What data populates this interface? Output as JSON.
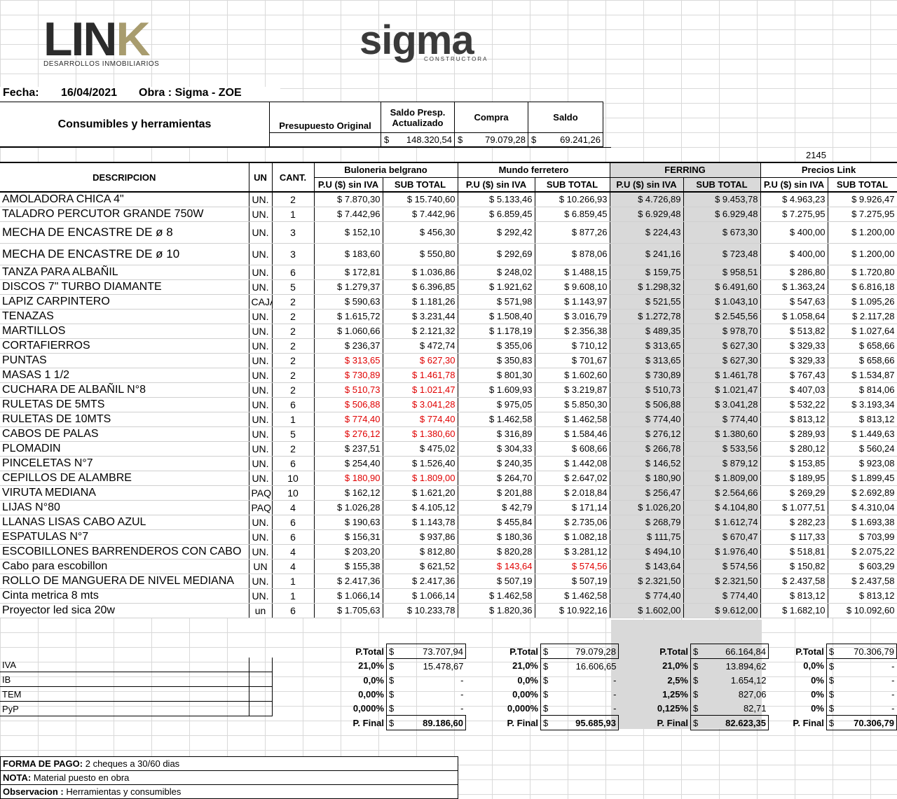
{
  "logos": {
    "link_main": "LIN",
    "link_k": "K",
    "link_sub": "DESARROLLOS INMOBILIARIOS",
    "sigma_main": "sigma",
    "sigma_sub": "CONSTRUCTORA"
  },
  "header": {
    "fecha_label": "Fecha:",
    "fecha_value": "16/04/2021",
    "obra": "Obra : Sigma - ZOE"
  },
  "summary": {
    "title": "Consumibles y herramientas",
    "col_original": "Presupuesto Original",
    "col_saldo_presp": "Saldo Presp. Actualizado",
    "col_compra": "Compra",
    "col_saldo": "Saldo",
    "currency": "$",
    "saldo_presp_value": "148.320,54",
    "compra_value": "79.079,28",
    "saldo_value": "69.241,26",
    "extra_number": "2145"
  },
  "columns": {
    "descripcion": "DESCRIPCION",
    "un": "UN",
    "cant": "CANT.",
    "vendors": [
      "Buloneria belgrano",
      "Mundo ferretero",
      "FERRING",
      "Precios Link"
    ],
    "pu": "P.U ($) sin IVA",
    "subtotal": "SUB TOTAL"
  },
  "rows": [
    {
      "desc": "AMOLADORA CHICA 4\"",
      "un": "UN.",
      "cant": "2",
      "v": [
        "$ 7.870,30",
        "$ 15.740,60",
        "$ 5.133,46",
        "$ 10.266,93",
        "$ 4.726,89",
        "$ 9.453,78",
        "$ 4.963,23",
        "$ 9.926,47"
      ],
      "red": []
    },
    {
      "desc": "TALADRO PERCUTOR GRANDE 750W",
      "un": "UN.",
      "cant": "1",
      "v": [
        "$ 7.442,96",
        "$ 7.442,96",
        "$ 6.859,45",
        "$ 6.859,45",
        "$ 6.929,48",
        "$ 6.929,48",
        "$ 7.275,95",
        "$ 7.275,95"
      ],
      "red": []
    },
    {
      "desc": "MECHA DE ENCASTRE DE ø 8",
      "un": "UN.",
      "cant": "3",
      "v": [
        "$ 152,10",
        "$ 456,30",
        "$ 292,42",
        "$ 877,26",
        "$ 224,43",
        "$ 673,30",
        "$ 400,00",
        "$ 1.200,00"
      ],
      "red": []
    },
    {
      "desc": "MECHA DE ENCASTRE DE ø 10",
      "un": "UN.",
      "cant": "3",
      "v": [
        "$ 183,60",
        "$ 550,80",
        "$ 292,69",
        "$ 878,06",
        "$ 241,16",
        "$ 723,48",
        "$ 400,00",
        "$ 1.200,00"
      ],
      "red": []
    },
    {
      "desc": "TANZA PARA ALBAÑIL",
      "un": "UN.",
      "cant": "6",
      "v": [
        "$ 172,81",
        "$ 1.036,86",
        "$ 248,02",
        "$ 1.488,15",
        "$ 159,75",
        "$ 958,51",
        "$ 286,80",
        "$ 1.720,80"
      ],
      "red": []
    },
    {
      "desc": "DISCOS 7\" TURBO DIAMANTE",
      "un": "UN.",
      "cant": "5",
      "v": [
        "$ 1.279,37",
        "$ 6.396,85",
        "$ 1.921,62",
        "$ 9.608,10",
        "$ 1.298,32",
        "$ 6.491,60",
        "$ 1.363,24",
        "$ 6.816,18"
      ],
      "red": []
    },
    {
      "desc": "LAPIZ CARPINTERO",
      "un": "CAJAS",
      "cant": "2",
      "v": [
        "$ 590,63",
        "$ 1.181,26",
        "$ 571,98",
        "$ 1.143,97",
        "$ 521,55",
        "$ 1.043,10",
        "$ 547,63",
        "$ 1.095,26"
      ],
      "red": []
    },
    {
      "desc": "TENAZAS",
      "un": "UN.",
      "cant": "2",
      "v": [
        "$ 1.615,72",
        "$ 3.231,44",
        "$ 1.508,40",
        "$ 3.016,79",
        "$ 1.272,78",
        "$ 2.545,56",
        "$ 1.058,64",
        "$ 2.117,28"
      ],
      "red": []
    },
    {
      "desc": "MARTILLOS",
      "un": "UN.",
      "cant": "2",
      "v": [
        "$ 1.060,66",
        "$ 2.121,32",
        "$ 1.178,19",
        "$ 2.356,38",
        "$ 489,35",
        "$ 978,70",
        "$ 513,82",
        "$ 1.027,64"
      ],
      "red": []
    },
    {
      "desc": "CORTAFIERROS",
      "un": "UN.",
      "cant": "2",
      "v": [
        "$ 236,37",
        "$ 472,74",
        "$ 355,06",
        "$ 710,12",
        "$ 313,65",
        "$ 627,30",
        "$ 329,33",
        "$ 658,66"
      ],
      "red": []
    },
    {
      "desc": "PUNTAS",
      "un": "UN.",
      "cant": "2",
      "v": [
        "$ 313,65",
        "$ 627,30",
        "$ 350,83",
        "$ 701,67",
        "$ 313,65",
        "$ 627,30",
        "$ 329,33",
        "$ 658,66"
      ],
      "red": [
        0,
        1
      ]
    },
    {
      "desc": "MASAS 1 1/2",
      "un": "UN.",
      "cant": "2",
      "v": [
        "$ 730,89",
        "$ 1.461,78",
        "$ 801,30",
        "$ 1.602,60",
        "$ 730,89",
        "$ 1.461,78",
        "$ 767,43",
        "$ 1.534,87"
      ],
      "red": [
        0,
        1
      ]
    },
    {
      "desc": "CUCHARA DE ALBAÑIL N°8",
      "un": "UN.",
      "cant": "2",
      "v": [
        "$ 510,73",
        "$ 1.021,47",
        "$ 1.609,93",
        "$ 3.219,87",
        "$ 510,73",
        "$ 1.021,47",
        "$ 407,03",
        "$ 814,06"
      ],
      "red": [
        0,
        1
      ]
    },
    {
      "desc": "RULETAS DE 5MTS",
      "un": "UN.",
      "cant": "6",
      "v": [
        "$ 506,88",
        "$ 3.041,28",
        "$ 975,05",
        "$ 5.850,30",
        "$ 506,88",
        "$ 3.041,28",
        "$ 532,22",
        "$ 3.193,34"
      ],
      "red": [
        0,
        1
      ]
    },
    {
      "desc": "RULETAS DE 10MTS",
      "un": "UN.",
      "cant": "1",
      "v": [
        "$ 774,40",
        "$ 774,40",
        "$ 1.462,58",
        "$ 1.462,58",
        "$ 774,40",
        "$ 774,40",
        "$ 813,12",
        "$ 813,12"
      ],
      "red": [
        0,
        1
      ]
    },
    {
      "desc": "CABOS DE PALAS",
      "un": "UN.",
      "cant": "5",
      "v": [
        "$ 276,12",
        "$ 1.380,60",
        "$ 316,89",
        "$ 1.584,46",
        "$ 276,12",
        "$ 1.380,60",
        "$ 289,93",
        "$ 1.449,63"
      ],
      "red": [
        0,
        1
      ]
    },
    {
      "desc": "PLOMADIN",
      "un": "UN.",
      "cant": "2",
      "v": [
        "$ 237,51",
        "$ 475,02",
        "$ 304,33",
        "$ 608,66",
        "$ 266,78",
        "$ 533,56",
        "$ 280,12",
        "$ 560,24"
      ],
      "red": []
    },
    {
      "desc": "PINCELETAS N°7",
      "un": "UN.",
      "cant": "6",
      "v": [
        "$ 254,40",
        "$ 1.526,40",
        "$ 240,35",
        "$ 1.442,08",
        "$ 146,52",
        "$ 879,12",
        "$ 153,85",
        "$ 923,08"
      ],
      "red": []
    },
    {
      "desc": "CEPILLOS DE ALAMBRE",
      "un": "UN.",
      "cant": "10",
      "v": [
        "$ 180,90",
        "$ 1.809,00",
        "$ 264,70",
        "$ 2.647,02",
        "$ 180,90",
        "$ 1.809,00",
        "$ 189,95",
        "$ 1.899,45"
      ],
      "red": [
        0,
        1
      ]
    },
    {
      "desc": "VIRUTA MEDIANA",
      "un": "PAQUET",
      "cant": "10",
      "v": [
        "$ 162,12",
        "$ 1.621,20",
        "$ 201,88",
        "$ 2.018,84",
        "$ 256,47",
        "$ 2.564,66",
        "$ 269,29",
        "$ 2.692,89"
      ],
      "red": []
    },
    {
      "desc": "LIJAS N°80",
      "un": "PAQUET",
      "cant": "4",
      "v": [
        "$ 1.026,28",
        "$ 4.105,12",
        "$ 42,79",
        "$ 171,14",
        "$ 1.026,20",
        "$ 4.104,80",
        "$ 1.077,51",
        "$ 4.310,04"
      ],
      "red": []
    },
    {
      "desc": "LLANAS LISAS CABO AZUL",
      "un": "UN.",
      "cant": "6",
      "v": [
        "$ 190,63",
        "$ 1.143,78",
        "$ 455,84",
        "$ 2.735,06",
        "$ 268,79",
        "$ 1.612,74",
        "$ 282,23",
        "$ 1.693,38"
      ],
      "red": []
    },
    {
      "desc": "ESPATULAS N°7",
      "un": "UN.",
      "cant": "6",
      "v": [
        "$ 156,31",
        "$ 937,86",
        "$ 180,36",
        "$ 1.082,18",
        "$ 111,75",
        "$ 670,47",
        "$ 117,33",
        "$ 703,99"
      ],
      "red": []
    },
    {
      "desc": "ESCOBILLONES BARRENDEROS CON CABO",
      "un": "UN.",
      "cant": "4",
      "v": [
        "$ 203,20",
        "$ 812,80",
        "$ 820,28",
        "$ 3.281,12",
        "$ 494,10",
        "$ 1.976,40",
        "$ 518,81",
        "$ 2.075,22"
      ],
      "red": []
    },
    {
      "desc": "Cabo para escobillon",
      "un": "UN",
      "cant": "4",
      "v": [
        "$ 155,38",
        "$ 621,52",
        "$ 143,64",
        "$ 574,56",
        "$ 143,64",
        "$ 574,56",
        "$ 150,82",
        "$ 603,29"
      ],
      "red": [
        2,
        3
      ]
    },
    {
      "desc": "ROLLO DE MANGUERA DE NIVEL MEDIANA",
      "un": "UN.",
      "cant": "1",
      "v": [
        "$ 2.417,36",
        "$ 2.417,36",
        "$ 507,19",
        "$ 507,19",
        "$ 2.321,50",
        "$ 2.321,50",
        "$ 2.437,58",
        "$ 2.437,58"
      ],
      "red": []
    },
    {
      "desc": "Cinta metrica 8 mts",
      "un": "UN.",
      "cant": "1",
      "v": [
        "$ 1.066,14",
        "$ 1.066,14",
        "$ 1.462,58",
        "$ 1.462,58",
        "$ 774,40",
        "$ 774,40",
        "$ 813,12",
        "$ 813,12"
      ],
      "red": []
    },
    {
      "desc": "Proyector led sica 20w",
      "un": "un",
      "cant": "6",
      "v": [
        "$ 1.705,63",
        "$ 10.233,78",
        "$ 1.820,36",
        "$ 10.922,16",
        "$ 1.602,00",
        "$ 9.612,00",
        "$ 1.682,10",
        "$ 10.092,60"
      ],
      "red": []
    }
  ],
  "totals": {
    "row_labels": [
      "IVA",
      "IB",
      "TEM",
      "PyP"
    ],
    "ptotal_label": "P.Total",
    "pfinal_label": "P. Final",
    "currency": "$",
    "vendors": [
      {
        "ptotal": "73.707,94",
        "rates": [
          "21,0%",
          "0,0%",
          "0,00%",
          "0,000%"
        ],
        "amounts": [
          "15.478,67",
          "-",
          "-",
          "-"
        ],
        "pfinal": "89.186,60"
      },
      {
        "ptotal": "79.079,28",
        "rates": [
          "21,0%",
          "0,0%",
          "0,00%",
          "0,000%"
        ],
        "amounts": [
          "16.606,65",
          "-",
          "-",
          "-"
        ],
        "pfinal": "95.685,93"
      },
      {
        "ptotal": "66.164,84",
        "rates": [
          "21,0%",
          "2,5%",
          "1,25%",
          "0,125%"
        ],
        "amounts": [
          "13.894,62",
          "1.654,12",
          "827,06",
          "82,71"
        ],
        "pfinal": "82.623,35"
      },
      {
        "ptotal": "70.306,79",
        "rates": [
          "0,0%",
          "0%",
          "0%",
          "0%"
        ],
        "amounts": [
          "-",
          "-",
          "-",
          "-"
        ],
        "pfinal": "70.306,79"
      }
    ]
  },
  "footer": {
    "forma_label": "FORMA DE PAGO:",
    "forma_value": "2 cheques a 30/60 dias",
    "nota_label": "NOTA:",
    "nota_value": "Material puesto en obra",
    "obs_label": "Observacion :",
    "obs_value": "Herramientas y consumibles"
  }
}
